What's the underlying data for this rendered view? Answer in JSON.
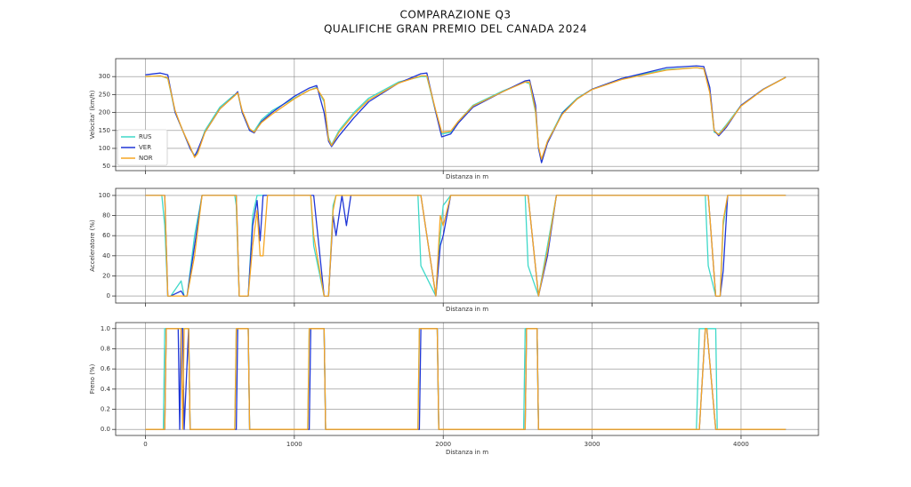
{
  "title": [
    "COMPARAZIONE Q3",
    "QUALIFICHE GRAN PREMIO DEL CANADA 2024"
  ],
  "chart_data": [
    {
      "type": "line",
      "xlabel": "Distanza in m",
      "ylabel": "Velocita' (km/h)",
      "xlim": [
        -200,
        4520
      ],
      "ylim": [
        38,
        350
      ],
      "xticks": [
        0,
        1000,
        2000,
        3000,
        4000
      ],
      "yticks": [
        50,
        100,
        150,
        200,
        250,
        300
      ],
      "grid": true,
      "legend": "lower left",
      "x": [
        0,
        100,
        150,
        200,
        250,
        300,
        330,
        350,
        400,
        500,
        600,
        620,
        650,
        700,
        730,
        780,
        850,
        1000,
        1100,
        1150,
        1200,
        1230,
        1250,
        1300,
        1400,
        1500,
        1700,
        1850,
        1890,
        1950,
        1990,
        2050,
        2100,
        2200,
        2400,
        2550,
        2580,
        2620,
        2640,
        2660,
        2700,
        2800,
        2900,
        3000,
        3200,
        3500,
        3700,
        3750,
        3790,
        3820,
        3850,
        3900,
        4000,
        4150,
        4300
      ],
      "series": [
        {
          "name": "RUS",
          "color": "#3fd9c9",
          "values": [
            300,
            302,
            295,
            200,
            150,
            100,
            80,
            90,
            150,
            215,
            250,
            255,
            200,
            150,
            148,
            180,
            205,
            240,
            262,
            270,
            230,
            130,
            110,
            150,
            200,
            240,
            285,
            300,
            300,
            200,
            140,
            145,
            175,
            220,
            260,
            285,
            280,
            200,
            100,
            65,
            120,
            200,
            240,
            265,
            295,
            320,
            325,
            322,
            260,
            145,
            140,
            165,
            220,
            265,
            298
          ]
        },
        {
          "name": "VER",
          "color": "#1f36d6",
          "values": [
            305,
            310,
            305,
            200,
            150,
            100,
            78,
            95,
            145,
            210,
            248,
            258,
            200,
            150,
            143,
            175,
            200,
            245,
            268,
            275,
            200,
            120,
            105,
            135,
            185,
            230,
            282,
            308,
            310,
            200,
            132,
            140,
            170,
            215,
            258,
            288,
            290,
            220,
            100,
            60,
            115,
            198,
            238,
            265,
            295,
            325,
            330,
            328,
            270,
            150,
            135,
            158,
            220,
            265,
            298
          ]
        },
        {
          "name": "NOR",
          "color": "#f5a623",
          "values": [
            300,
            302,
            296,
            205,
            150,
            105,
            75,
            85,
            145,
            210,
            247,
            255,
            205,
            155,
            145,
            172,
            195,
            238,
            262,
            268,
            235,
            125,
            108,
            145,
            195,
            235,
            282,
            302,
            302,
            205,
            145,
            148,
            175,
            218,
            258,
            285,
            285,
            205,
            105,
            70,
            120,
            195,
            238,
            264,
            292,
            318,
            325,
            322,
            255,
            150,
            138,
            162,
            218,
            264,
            298
          ]
        }
      ]
    },
    {
      "type": "line",
      "xlabel": "Distanza in m",
      "ylabel": "Acceleratore (%)",
      "xlim": [
        -200,
        4520
      ],
      "ylim": [
        -7,
        107
      ],
      "xticks": [
        0,
        1000,
        2000,
        3000,
        4000
      ],
      "yticks": [
        0,
        20,
        40,
        60,
        80,
        100
      ],
      "grid": true,
      "x": [
        0,
        110,
        130,
        150,
        170,
        240,
        260,
        280,
        330,
        380,
        600,
        610,
        630,
        660,
        690,
        720,
        750,
        770,
        790,
        820,
        1100,
        1110,
        1130,
        1200,
        1230,
        1260,
        1280,
        1320,
        1350,
        1380,
        1820,
        1830,
        1850,
        1950,
        1980,
        2000,
        2050,
        2540,
        2550,
        2570,
        2640,
        2700,
        2760,
        3750,
        3760,
        3780,
        3830,
        3860,
        3880,
        3910,
        4300
      ],
      "series": [
        {
          "name": "RUS",
          "color": "#3fd9c9",
          "values": [
            100,
            100,
            70,
            0,
            0,
            15,
            0,
            0,
            60,
            100,
            100,
            90,
            0,
            0,
            0,
            80,
            100,
            100,
            100,
            100,
            100,
            100,
            50,
            0,
            0,
            90,
            100,
            100,
            100,
            100,
            100,
            100,
            30,
            0,
            60,
            90,
            100,
            100,
            100,
            30,
            0,
            50,
            100,
            100,
            100,
            30,
            0,
            0,
            70,
            100,
            100
          ]
        },
        {
          "name": "VER",
          "color": "#1f36d6",
          "values": [
            100,
            100,
            100,
            0,
            0,
            5,
            0,
            0,
            50,
            100,
            100,
            100,
            0,
            0,
            0,
            70,
            95,
            55,
            100,
            100,
            100,
            100,
            100,
            0,
            0,
            80,
            60,
            100,
            70,
            100,
            100,
            100,
            100,
            0,
            50,
            60,
            100,
            100,
            100,
            100,
            0,
            40,
            100,
            100,
            100,
            100,
            0,
            0,
            25,
            100,
            100
          ]
        },
        {
          "name": "NOR",
          "color": "#f5a623",
          "values": [
            100,
            100,
            100,
            0,
            0,
            0,
            0,
            0,
            40,
            100,
            100,
            100,
            0,
            0,
            0,
            50,
            85,
            40,
            40,
            100,
            100,
            100,
            60,
            0,
            0,
            85,
            100,
            100,
            100,
            100,
            100,
            100,
            100,
            0,
            80,
            70,
            100,
            100,
            100,
            100,
            0,
            45,
            100,
            100,
            100,
            100,
            0,
            0,
            75,
            100,
            100
          ]
        }
      ]
    },
    {
      "type": "line",
      "xlabel": "Distanza in m",
      "ylabel": "Freno (%)",
      "xlim": [
        -200,
        4520
      ],
      "ylim": [
        -0.06,
        1.06
      ],
      "xticks": [
        0,
        1000,
        2000,
        3000,
        4000
      ],
      "yticks": [
        {
          "value": 0,
          "label": "0.0"
        },
        0.2,
        0.4,
        0.6,
        0.8,
        {
          "value": 1,
          "label": "1.0"
        }
      ],
      "grid": true,
      "show_xtick_labels": true,
      "x": [
        0,
        120,
        130,
        140,
        220,
        230,
        240,
        250,
        260,
        290,
        300,
        600,
        610,
        620,
        690,
        700,
        1090,
        1100,
        1110,
        1200,
        1210,
        1830,
        1840,
        1850,
        1960,
        1970,
        2540,
        2550,
        2560,
        2630,
        2640,
        3700,
        3720,
        3760,
        3770,
        3830,
        3840,
        4300
      ],
      "series": [
        {
          "name": "RUS",
          "color": "#3fd9c9",
          "values": [
            0,
            0,
            1,
            1,
            1,
            1,
            1,
            1,
            1,
            1,
            0,
            0,
            1,
            1,
            1,
            0,
            0,
            1,
            1,
            1,
            0,
            0,
            1,
            1,
            1,
            0,
            0,
            1,
            1,
            1,
            0,
            0,
            1,
            1,
            1,
            1,
            0,
            0
          ]
        },
        {
          "name": "VER",
          "color": "#1f36d6",
          "values": [
            0,
            0,
            0,
            1,
            1,
            0,
            1,
            1,
            0,
            1,
            0,
            0,
            0,
            1,
            1,
            0,
            0,
            0,
            1,
            1,
            0,
            0,
            0,
            1,
            1,
            0,
            0,
            0,
            1,
            1,
            0,
            0,
            0,
            1,
            1,
            0,
            0,
            0
          ]
        },
        {
          "name": "NOR",
          "color": "#f5a623",
          "values": [
            0,
            0,
            0,
            1,
            1,
            1,
            1,
            0,
            1,
            1,
            0,
            0,
            1,
            1,
            1,
            0,
            0,
            1,
            1,
            1,
            0,
            0,
            1,
            1,
            1,
            0,
            0,
            0,
            1,
            1,
            0,
            0,
            0,
            1,
            1,
            0,
            0,
            0
          ]
        }
      ]
    }
  ]
}
